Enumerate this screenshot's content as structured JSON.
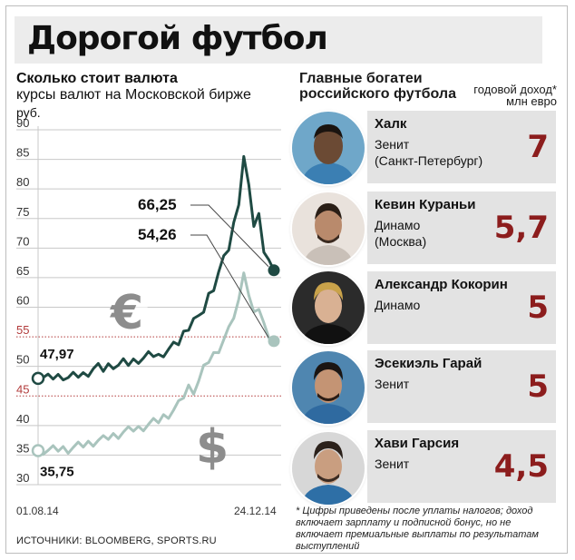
{
  "title": "Дорогой футбол",
  "chart": {
    "heading_line1": "Сколько стоит валюта",
    "heading_line2": "курсы валют на Московской бирже",
    "unit": "руб.",
    "y_ticks": [
      "90",
      "85",
      "80",
      "75",
      "70",
      "65",
      "60",
      "55",
      "50",
      "45",
      "40",
      "35",
      "30"
    ],
    "x_start": "01.08.14",
    "x_end": "24.12.14",
    "eur_start_label": "47,97",
    "usd_start_label": "35,75",
    "eur_end_label": "66,25",
    "usd_end_label": "54,26",
    "eur_symbol": "€",
    "usd_symbol": "$"
  },
  "chart_data": {
    "type": "line",
    "ylabel": "руб.",
    "ylim": [
      30,
      90
    ],
    "x_start": "01.08.14",
    "x_end": "24.12.14",
    "highlight_lines": [
      55,
      45
    ],
    "series": [
      {
        "name": "€",
        "color": "#1f4a43",
        "values": [
          47.97,
          48.1,
          48.0,
          48.2,
          48.3,
          48.4,
          48.1,
          48.3,
          48.5,
          48.6,
          49.0,
          49.6,
          49.8,
          49.5,
          50.1,
          50.3,
          50.2,
          50.6,
          50.5,
          50.9,
          51.2,
          51.4,
          51.8,
          52.0,
          51.7,
          52.3,
          52.9,
          53.4,
          54.0,
          55.6,
          56.8,
          58.1,
          57.9,
          59.5,
          62.0,
          63.5,
          66.0,
          68.0,
          70.0,
          74.0,
          78.0,
          85.5,
          80.0,
          74.0,
          75.5,
          70.0,
          68.0,
          66.25
        ]
      },
      {
        "name": "$",
        "color": "#a9c4bd",
        "values": [
          35.75,
          35.8,
          35.8,
          35.9,
          36.0,
          36.1,
          36.0,
          36.3,
          36.5,
          36.7,
          37.0,
          37.2,
          37.5,
          37.6,
          38.0,
          38.3,
          38.5,
          38.9,
          39.1,
          39.4,
          39.5,
          39.8,
          40.2,
          40.5,
          40.8,
          41.5,
          41.9,
          42.6,
          43.5,
          45.0,
          46.5,
          46.0,
          47.5,
          49.5,
          51.0,
          52.0,
          53.0,
          54.5,
          56.0,
          58.5,
          61.0,
          66.5,
          62.0,
          58.5,
          60.0,
          57.0,
          55.5,
          54.26
        ]
      }
    ]
  },
  "players": {
    "heading_line1": "Главные богатеи",
    "heading_line2": "российского футбола",
    "income_note_line1": "годовой доход*",
    "income_note_line2": "млн евро",
    "list": [
      {
        "name": "Халк",
        "club_line1": "Зенит",
        "club_line2": "(Санкт-Петербург)",
        "income": "7"
      },
      {
        "name": "Кевин Кураньи",
        "club_line1": "Динамо",
        "club_line2": "(Москва)",
        "income": "5,7"
      },
      {
        "name": "Александр Кокорин",
        "club_line1": "Динамо",
        "club_line2": "",
        "income": "5"
      },
      {
        "name": "Эсекиэль Гарай",
        "club_line1": "Зенит",
        "club_line2": "",
        "income": "5"
      },
      {
        "name": "Хави Гарсия",
        "club_line1": "Зенит",
        "club_line2": "",
        "income": "4,5"
      }
    ]
  },
  "footnote": "* Цифры приведены после уплаты налогов; доход включает зарплату и подписной бонус, но не включает премиальные выплаты по результатам выступлений",
  "sources": "ИСТОЧНИКИ: BLOOMBERG, SPORTS.RU"
}
